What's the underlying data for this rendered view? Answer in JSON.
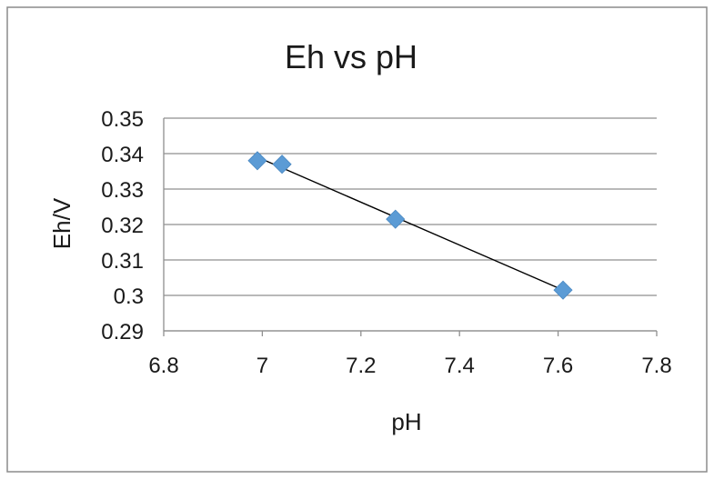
{
  "chart_data": {
    "type": "scatter",
    "title": "Eh vs pH",
    "xlabel": "pH",
    "ylabel": "Eh/V",
    "xlim": [
      6.8,
      7.8
    ],
    "ylim": [
      0.29,
      0.35
    ],
    "x_ticks": [
      "6.8",
      "7",
      "7.2",
      "7.4",
      "7.6",
      "7.8"
    ],
    "y_ticks": [
      "0.35",
      "0.34",
      "0.33",
      "0.32",
      "0.31",
      "0.3",
      "0.29"
    ],
    "grid": "horizontal",
    "legend": "none",
    "series": [
      {
        "marker": "diamond",
        "color": "#5b9bd5",
        "points": [
          {
            "x": 6.99,
            "y": 0.338
          },
          {
            "x": 7.04,
            "y": 0.337
          },
          {
            "x": 7.27,
            "y": 0.3215
          },
          {
            "x": 7.61,
            "y": 0.3015
          }
        ]
      }
    ],
    "trendline": {
      "type": "linear",
      "color": "#000000",
      "from": {
        "x": 6.99,
        "y": 0.339
      },
      "to": {
        "x": 7.61,
        "y": 0.3015
      }
    }
  }
}
